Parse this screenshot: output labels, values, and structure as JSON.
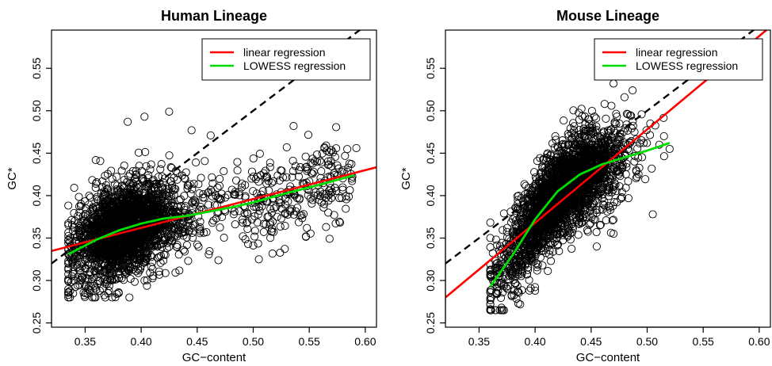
{
  "chart_data": [
    {
      "type": "scatter",
      "title": "Human Lineage",
      "xlabel": "GC−content",
      "ylabel": "GC*",
      "xlim": [
        0.32,
        0.61
      ],
      "ylim": [
        0.245,
        0.595
      ],
      "xticks": [
        "0.35",
        "0.40",
        "0.45",
        "0.50",
        "0.55",
        "0.60"
      ],
      "yticks": [
        "0.25",
        "0.30",
        "0.35",
        "0.40",
        "0.45",
        "0.50",
        "0.55"
      ],
      "grid": false,
      "legend_position": "top-right",
      "legend": [
        "linear regression",
        "LOWESS regression"
      ],
      "colors": {
        "points": "#000000",
        "linear": "#ff0000",
        "lowess": "#00dd00",
        "identity": "#000000"
      },
      "cloud": {
        "n": 2600,
        "x_mean": 0.385,
        "x_sd": 0.022,
        "x_min": 0.335,
        "x_max": 0.59,
        "tail_fraction": 0.18,
        "residual_sd": 0.026,
        "y_min": 0.28,
        "y_max": 0.5
      },
      "linear_regression": {
        "slope": 0.34,
        "intercept": 0.226
      },
      "lowess_regression": {
        "x": [
          0.335,
          0.36,
          0.38,
          0.4,
          0.42,
          0.44,
          0.46,
          0.48,
          0.5,
          0.53,
          0.56,
          0.59
        ],
        "y": [
          0.331,
          0.348,
          0.359,
          0.367,
          0.373,
          0.376,
          0.381,
          0.386,
          0.392,
          0.403,
          0.413,
          0.424
        ]
      },
      "identity_line": true,
      "outliers": [
        {
          "x": 0.388,
          "y": 0.487
        },
        {
          "x": 0.403,
          "y": 0.493
        },
        {
          "x": 0.425,
          "y": 0.499
        },
        {
          "x": 0.445,
          "y": 0.477
        },
        {
          "x": 0.462,
          "y": 0.471
        },
        {
          "x": 0.536,
          "y": 0.482
        },
        {
          "x": 0.565,
          "y": 0.459
        },
        {
          "x": 0.592,
          "y": 0.456
        },
        {
          "x": 0.567,
          "y": 0.38
        },
        {
          "x": 0.38,
          "y": 0.285
        },
        {
          "x": 0.403,
          "y": 0.3
        },
        {
          "x": 0.505,
          "y": 0.325
        },
        {
          "x": 0.547,
          "y": 0.352
        },
        {
          "x": 0.588,
          "y": 0.42
        }
      ]
    },
    {
      "type": "scatter",
      "title": "Mouse Lineage",
      "xlabel": "GC−content",
      "ylabel": "GC*",
      "xlim": [
        0.32,
        0.61
      ],
      "ylim": [
        0.245,
        0.595
      ],
      "xticks": [
        "0.35",
        "0.40",
        "0.45",
        "0.50",
        "0.55",
        "0.60"
      ],
      "yticks": [
        "0.25",
        "0.30",
        "0.35",
        "0.40",
        "0.45",
        "0.50",
        "0.55"
      ],
      "grid": false,
      "legend_position": "top-right",
      "legend": [
        "linear regression",
        "LOWESS regression"
      ],
      "colors": {
        "points": "#000000",
        "linear": "#ff0000",
        "lowess": "#00dd00",
        "identity": "#000000"
      },
      "cloud": {
        "n": 2600,
        "x_mean": 0.425,
        "x_sd": 0.028,
        "x_min": 0.36,
        "x_max": 0.52,
        "tail_fraction": 0.0,
        "residual_sd": 0.027,
        "y_min": 0.265,
        "y_max": 0.535
      },
      "linear_regression": {
        "slope": 1.1,
        "intercept": -0.072
      },
      "lowess_regression": {
        "x": [
          0.36,
          0.38,
          0.4,
          0.42,
          0.44,
          0.46,
          0.48,
          0.5,
          0.52
        ],
        "y": [
          0.293,
          0.33,
          0.372,
          0.405,
          0.425,
          0.437,
          0.445,
          0.453,
          0.462
        ]
      },
      "identity_line": true,
      "outliers": [
        {
          "x": 0.47,
          "y": 0.532
        },
        {
          "x": 0.487,
          "y": 0.524
        },
        {
          "x": 0.462,
          "y": 0.508
        },
        {
          "x": 0.385,
          "y": 0.273
        },
        {
          "x": 0.37,
          "y": 0.268
        },
        {
          "x": 0.4,
          "y": 0.288
        },
        {
          "x": 0.505,
          "y": 0.378
        },
        {
          "x": 0.52,
          "y": 0.455
        },
        {
          "x": 0.515,
          "y": 0.47
        },
        {
          "x": 0.455,
          "y": 0.34
        },
        {
          "x": 0.47,
          "y": 0.355
        }
      ]
    }
  ]
}
